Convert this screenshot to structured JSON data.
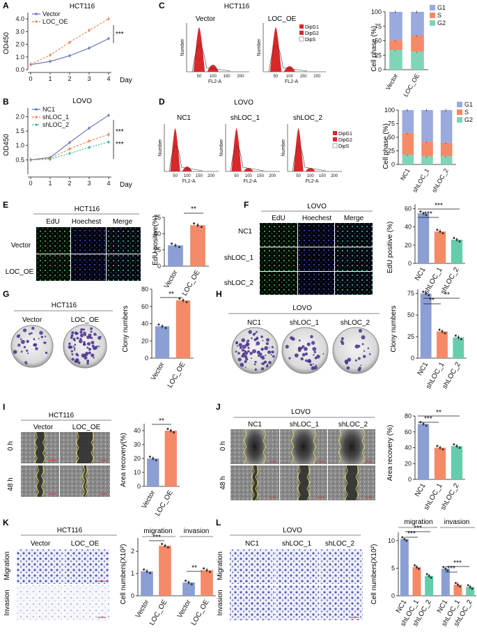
{
  "panels": {
    "A": {
      "letter": "A",
      "title": "HCT116",
      "ylabel": "OD450",
      "xunit": "Day",
      "sig": "***"
    },
    "B": {
      "letter": "B",
      "title": "LOVO",
      "ylabel": "OD450",
      "xunit": "Day",
      "sig1": "***",
      "sig2": "***"
    },
    "C": {
      "letter": "C",
      "title": "HCT116",
      "groups": [
        "Vector",
        "LOC_OE"
      ],
      "yaxis": "Number",
      "xaxis": "FL2-A",
      "legend": [
        "DipG1",
        "DipG2",
        "DipS"
      ]
    },
    "C2": {
      "ylabel": "Cell phase (%)"
    },
    "D": {
      "letter": "D",
      "title": "LOVO",
      "groups": [
        "NC1",
        "shLOC_1",
        "shLOC_2"
      ],
      "yaxis": "Number",
      "xaxis": "FL2-A",
      "legend": [
        "DipG1",
        "DipG2",
        "DipS"
      ]
    },
    "D2": {
      "ylabel": "Cell phase (%)"
    },
    "E": {
      "letter": "E",
      "title": "HCT116",
      "cols": [
        "EdU",
        "Hoechest",
        "Merge"
      ],
      "rows": [
        "Vector",
        "LOC_OE"
      ],
      "ylabel": "EdU positive(%)",
      "sig": "**"
    },
    "F": {
      "letter": "F",
      "title": "LOVO",
      "cols": [
        "EdU",
        "Hoechest",
        "Merge"
      ],
      "rows": [
        "NC1",
        "shLOC_1",
        "shLOC_2"
      ],
      "ylabel": "EdU positive (%)",
      "sig1": "***",
      "sig2": "***"
    },
    "G": {
      "letter": "G",
      "title": "HCT116",
      "groups": [
        "Vector",
        "LOC_OE"
      ],
      "ylabel": "Clony numbers",
      "sig": "**"
    },
    "H": {
      "letter": "H",
      "title": "LOVO",
      "groups": [
        "NC1",
        "shLOC_1",
        "shLOC_2"
      ],
      "ylabel": "Clony numbers",
      "sig1": "**",
      "sig2": "**"
    },
    "I": {
      "letter": "I",
      "title": "HCT116",
      "groups": [
        "Vector",
        "LOC_OE"
      ],
      "rows": [
        "0 h",
        "48 h"
      ],
      "ylabel": "Area recovery(%)",
      "sig": "**"
    },
    "J": {
      "letter": "J",
      "title": "LOVO",
      "groups": [
        "NC1",
        "shLOC_1",
        "shLOC_2"
      ],
      "rows": [
        "0 h",
        "48 h"
      ],
      "ylabel": "Area recovery (%)",
      "sig1": "***",
      "sig2": "**"
    },
    "K": {
      "letter": "K",
      "title": "HCT116",
      "groups": [
        "Vector",
        "LOC_OE"
      ],
      "rows": [
        "Migration",
        "Invasion"
      ],
      "ylabel": "Cell numbers(X10²)",
      "sec1": "migration",
      "sec2": "invasion",
      "sig1": "***",
      "sig2": "**"
    },
    "L": {
      "letter": "L",
      "title": "LOVO",
      "groups": [
        "NC1",
        "shLOC_1",
        "shLOC_2"
      ],
      "rows": [
        "Migration",
        "Invasion"
      ],
      "ylabel": "Cell numbers(X10²)",
      "sec1": "migration",
      "sec2": "invasion",
      "sig1": "***",
      "sig2": "***",
      "sig3": "***",
      "sig4": "***"
    }
  },
  "colors": {
    "vector": "#8b9fd4",
    "oe": "#f48a68",
    "nc": "#8b9fd4",
    "sh1": "#f48a68",
    "sh2": "#66ccae",
    "g1": "#9aaade",
    "s": "#f48a68",
    "g2": "#7fd5b8",
    "flow": "#d8282a"
  },
  "chart_data": [
    {
      "id": "A",
      "type": "line",
      "x": [
        0,
        1,
        2,
        3,
        4
      ],
      "xlabel": "Day",
      "ylabel": "OD450",
      "ylim": [
        0,
        4.5
      ],
      "series": [
        {
          "name": "Vector",
          "values": [
            0.4,
            0.65,
            1.1,
            1.7,
            2.45
          ]
        },
        {
          "name": "LOC_OE",
          "values": [
            0.42,
            1.15,
            2.15,
            3.1,
            4.0
          ]
        }
      ]
    },
    {
      "id": "B",
      "type": "line",
      "x": [
        0,
        1,
        2,
        3,
        4
      ],
      "xlabel": "Day",
      "ylabel": "OD450",
      "ylim": [
        0,
        2.3
      ],
      "series": [
        {
          "name": "NC1",
          "values": [
            0.5,
            0.58,
            1.1,
            1.6,
            2.05
          ]
        },
        {
          "name": "shLOC_1",
          "values": [
            0.5,
            0.55,
            0.88,
            1.15,
            1.38
          ]
        },
        {
          "name": "shLOC_2",
          "values": [
            0.5,
            0.52,
            0.72,
            0.93,
            1.12
          ]
        }
      ]
    },
    {
      "id": "C2",
      "type": "bar",
      "categories": [
        "Vector",
        "LOC_OE"
      ],
      "ylim": [
        0,
        100
      ],
      "series": [
        {
          "name": "G2",
          "values": [
            34,
            31
          ]
        },
        {
          "name": "S",
          "values": [
            17,
            28
          ]
        },
        {
          "name": "G1",
          "values": [
            49,
            41
          ]
        }
      ]
    },
    {
      "id": "D2",
      "type": "bar",
      "categories": [
        "NC1",
        "shLOC_1",
        "shLOC_2"
      ],
      "ylim": [
        0,
        100
      ],
      "series": [
        {
          "name": "G2",
          "values": [
            18,
            15,
            15
          ]
        },
        {
          "name": "S",
          "values": [
            40,
            27,
            25
          ]
        },
        {
          "name": "G1",
          "values": [
            42,
            58,
            60
          ]
        }
      ]
    },
    {
      "id": "E",
      "type": "bar",
      "categories": [
        "Vector",
        "LOC_OE"
      ],
      "values": [
        32,
        63
      ],
      "ylim": [
        0,
        75
      ]
    },
    {
      "id": "F",
      "type": "bar",
      "categories": [
        "NC1",
        "shLOC_1",
        "shLOC_2"
      ],
      "values": [
        55,
        35,
        26
      ],
      "ylim": [
        0,
        65
      ]
    },
    {
      "id": "G",
      "type": "bar",
      "categories": [
        "Vector",
        "LOC_OE"
      ],
      "values": [
        37,
        67
      ],
      "ylim": [
        0,
        80
      ]
    },
    {
      "id": "H",
      "type": "bar",
      "categories": [
        "NC1",
        "shLOC_1",
        "shLOC_2"
      ],
      "values": [
        75,
        31,
        24
      ],
      "ylim": [
        0,
        80
      ]
    },
    {
      "id": "I",
      "type": "bar",
      "categories": [
        "Vector",
        "LOC_OE"
      ],
      "values": [
        20,
        40
      ],
      "ylim": [
        0,
        45
      ]
    },
    {
      "id": "J",
      "type": "bar",
      "categories": [
        "NC1",
        "shLOC_1",
        "shLOC_2"
      ],
      "values": [
        70,
        40,
        42
      ],
      "ylim": [
        0,
        80
      ]
    },
    {
      "id": "K",
      "type": "bar",
      "categories": [
        "Vector",
        "LOC_OE",
        "Vector",
        "LOC_OE"
      ],
      "values": [
        1.1,
        2.25,
        0.6,
        1.15
      ],
      "ylim": [
        0,
        2.6
      ]
    },
    {
      "id": "L",
      "type": "bar",
      "categories": [
        "NC1",
        "shLOC_1",
        "shLOC_2",
        "NC1",
        "shLOC_1",
        "shLOC_2"
      ],
      "values": [
        10.3,
        5.2,
        3.6,
        4.9,
        2.0,
        1.6
      ],
      "ylim": [
        0,
        11.5
      ]
    }
  ]
}
